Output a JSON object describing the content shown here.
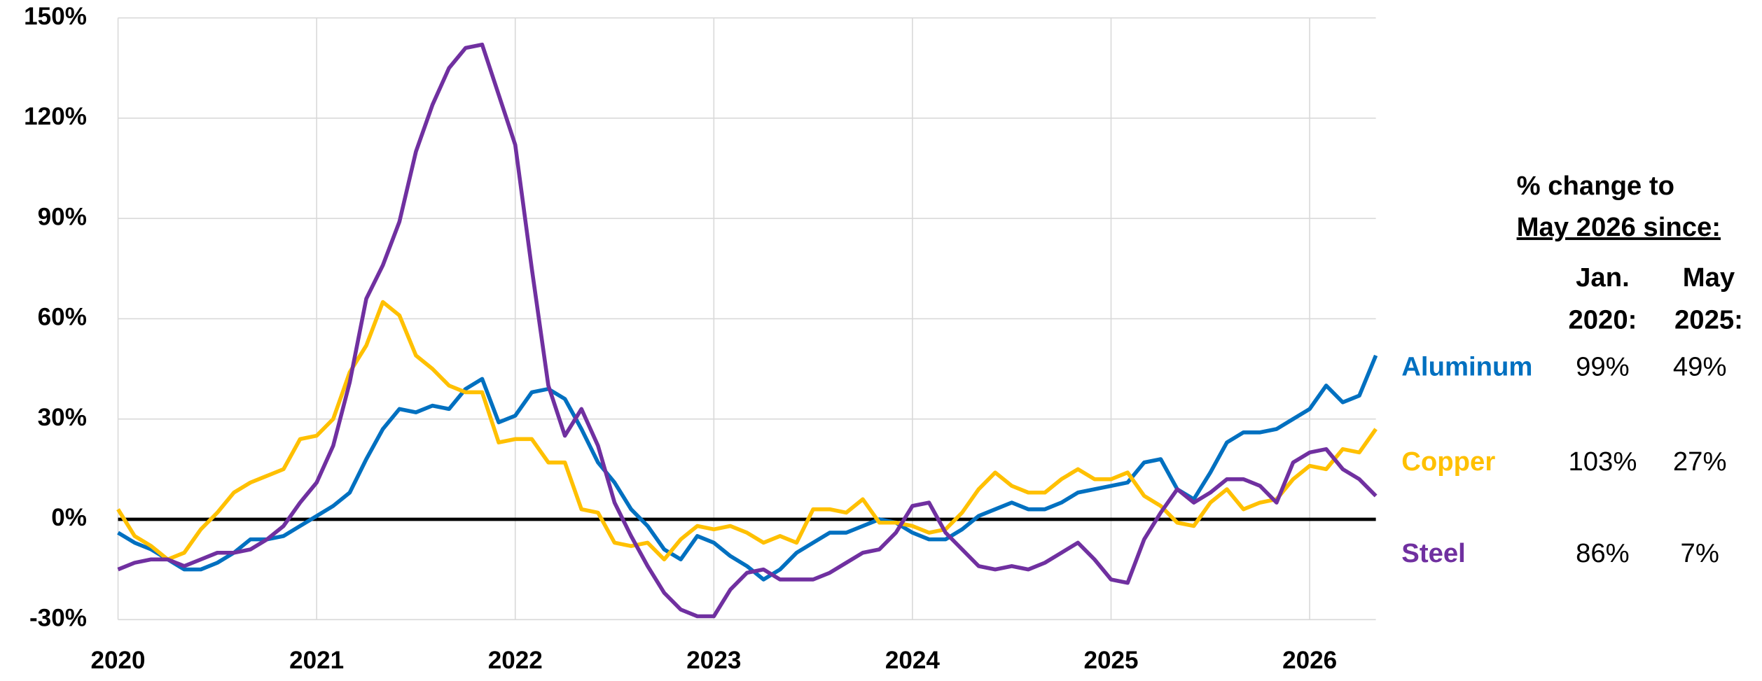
{
  "chart_data": {
    "type": "line",
    "x": [
      0,
      1,
      2,
      3,
      4,
      5,
      6,
      7,
      8,
      9,
      10,
      11,
      12,
      13,
      14,
      15,
      16,
      17,
      18,
      19,
      20,
      21,
      22,
      23,
      24,
      25,
      26,
      27,
      28,
      29,
      30,
      31,
      32,
      33,
      34,
      35,
      36,
      37,
      38,
      39,
      40,
      41,
      42,
      43,
      44,
      45,
      46,
      47,
      48,
      49,
      50,
      51,
      52,
      53,
      54,
      55,
      56,
      57,
      58,
      59,
      60,
      61,
      62,
      63,
      64,
      65,
      66,
      67,
      68,
      69,
      70,
      71,
      72,
      73,
      74,
      75,
      76
    ],
    "xlim": [
      0,
      76
    ],
    "xticks": [
      {
        "value": 0,
        "label": "2020"
      },
      {
        "value": 12,
        "label": "2021"
      },
      {
        "value": 24,
        "label": "2022"
      },
      {
        "value": 36,
        "label": "2023"
      },
      {
        "value": 48,
        "label": "2024"
      },
      {
        "value": 60,
        "label": "2025"
      },
      {
        "value": 72,
        "label": "2026"
      }
    ],
    "ylim": [
      -30,
      150
    ],
    "yticks": [
      {
        "value": -30,
        "label": "-30%"
      },
      {
        "value": 0,
        "label": "0%"
      },
      {
        "value": 30,
        "label": "30%"
      },
      {
        "value": 60,
        "label": "60%"
      },
      {
        "value": 90,
        "label": "90%"
      },
      {
        "value": 120,
        "label": "120%"
      },
      {
        "value": 150,
        "label": "150%"
      }
    ],
    "grid": true,
    "series": [
      {
        "name": "Aluminum",
        "color": "#0070c0",
        "values": [
          -4,
          -7,
          -9,
          -12,
          -15,
          -15,
          -13,
          -10,
          -6,
          -6,
          -5,
          -2,
          1,
          4,
          8,
          18,
          27,
          33,
          32,
          34,
          33,
          39,
          42,
          29,
          31,
          38,
          39,
          36,
          27,
          17,
          11,
          3,
          -2,
          -9,
          -12,
          -5,
          -7,
          -11,
          -14,
          -18,
          -15,
          -10,
          -7,
          -4,
          -4,
          -2,
          0,
          -1,
          -4,
          -6,
          -6,
          -3,
          1,
          3,
          5,
          3,
          3,
          5,
          8,
          9,
          10,
          11,
          17,
          18,
          9,
          6,
          14,
          23,
          26,
          26,
          27,
          30,
          33,
          40,
          35,
          37,
          49
        ]
      },
      {
        "name": "Copper",
        "color": "#ffc000",
        "values": [
          3,
          -5,
          -8,
          -12,
          -10,
          -3,
          2,
          8,
          11,
          13,
          15,
          24,
          25,
          30,
          44,
          52,
          65,
          61,
          49,
          45,
          40,
          38,
          38,
          23,
          24,
          24,
          17,
          17,
          3,
          2,
          -7,
          -8,
          -7,
          -12,
          -6,
          -2,
          -3,
          -2,
          -4,
          -7,
          -5,
          -7,
          3,
          3,
          2,
          6,
          -1,
          -1,
          -2,
          -4,
          -3,
          2,
          9,
          14,
          10,
          8,
          8,
          12,
          15,
          12,
          12,
          14,
          7,
          4,
          -1,
          -2,
          5,
          9,
          3,
          5,
          6,
          12,
          16,
          15,
          21,
          20,
          27
        ]
      },
      {
        "name": "Steel",
        "color": "#7030a0",
        "values": [
          -15,
          -13,
          -12,
          -12,
          -14,
          -12,
          -10,
          -10,
          -9,
          -6,
          -2,
          5,
          11,
          22,
          41,
          66,
          76,
          89,
          110,
          124,
          135,
          141,
          142,
          127,
          112,
          75,
          40,
          25,
          33,
          22,
          5,
          -5,
          -14,
          -22,
          -27,
          -29,
          -29,
          -21,
          -16,
          -15,
          -18,
          -18,
          -18,
          -16,
          -13,
          -10,
          -9,
          -4,
          4,
          5,
          -4,
          -9,
          -14,
          -15,
          -14,
          -15,
          -13,
          -10,
          -7,
          -12,
          -18,
          -19,
          -6,
          2,
          9,
          5,
          8,
          12,
          12,
          10,
          5,
          17,
          20,
          21,
          15,
          12,
          7
        ]
      }
    ],
    "table": {
      "title": [
        "% change to",
        "May 2026 since:"
      ],
      "columns": [
        [
          "Jan.",
          "2020:"
        ],
        [
          "May",
          "2025:"
        ]
      ],
      "rows": [
        [
          "99%",
          "49%"
        ],
        [
          "103%",
          "27%"
        ],
        [
          "86%",
          "7%"
        ]
      ]
    }
  }
}
